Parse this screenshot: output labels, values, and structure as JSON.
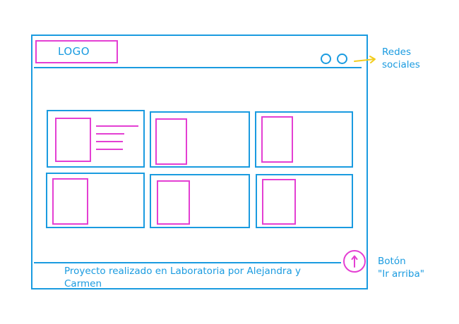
{
  "header": {
    "logo_text": "LOGO"
  },
  "annotations": {
    "social_line1": "Redes",
    "social_line2": "sociales",
    "top_button_line1": "Botón",
    "top_button_line2": "\"Ir arriba\""
  },
  "footer": {
    "text_line1": "Proyecto realizado en Laboratoria por Alejandra y",
    "text_line2": "Carmen"
  },
  "colors": {
    "structure": "#1a9be0",
    "content_placeholder": "#e43fd3",
    "annotation_arrow": "#f2cc1c"
  },
  "icons": {
    "social": [
      "social-circle-icon",
      "social-circle-icon"
    ],
    "scroll_top": "arrow-up-icon"
  }
}
